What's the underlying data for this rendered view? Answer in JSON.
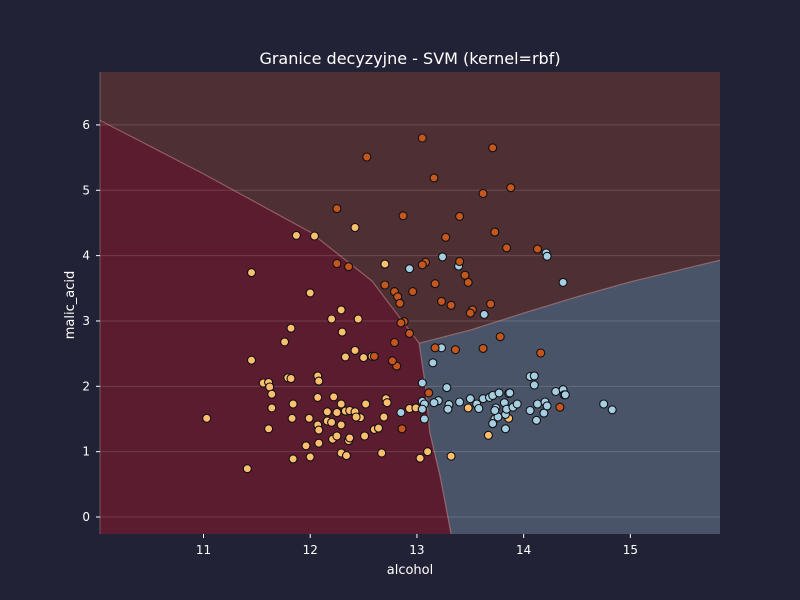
{
  "chart_data": {
    "type": "scatter",
    "title": "Granice decyzyjne - SVM (kernel=rbf)",
    "xlabel": "alcohol",
    "ylabel": "malic_acid",
    "xlim": [
      10.03,
      15.84
    ],
    "ylim": [
      -0.26,
      6.81
    ],
    "xticks": [
      11,
      12,
      13,
      14,
      15
    ],
    "yticks": [
      0,
      1,
      2,
      3,
      4,
      5,
      6
    ],
    "grid": "horizontal",
    "background_color": "#222236",
    "region_colors": {
      "class_0": "#5a1c2e",
      "class_1": "#4a5468",
      "class_2": "#4e2f34"
    },
    "decision_boundaries": {
      "class_0_class_2": [
        [
          10.03,
          6.07
        ],
        [
          11.0,
          5.25
        ],
        [
          12.0,
          4.36
        ],
        [
          12.58,
          3.61
        ],
        [
          13.02,
          2.66
        ]
      ],
      "class_1_class_2": [
        [
          13.02,
          2.66
        ],
        [
          13.5,
          2.86
        ],
        [
          14.0,
          3.12
        ],
        [
          14.5,
          3.37
        ],
        [
          15.0,
          3.6
        ],
        [
          15.84,
          3.93
        ]
      ],
      "class_0_class_1": [
        [
          13.02,
          2.66
        ],
        [
          13.08,
          2.0
        ],
        [
          13.12,
          1.3
        ],
        [
          13.22,
          0.6
        ],
        [
          13.32,
          -0.26
        ]
      ]
    },
    "series": [
      {
        "name": "",
        "color": "#fdbf6f",
        "points": [
          [
            11.45,
            3.74
          ],
          [
            11.87,
            4.31
          ],
          [
            12.04,
            4.3
          ],
          [
            12.42,
            4.43
          ],
          [
            12.7,
            3.87
          ],
          [
            12.0,
            3.43
          ],
          [
            12.29,
            3.17
          ],
          [
            12.2,
            3.03
          ],
          [
            12.45,
            3.03
          ],
          [
            12.3,
            2.83
          ],
          [
            12.42,
            2.55
          ],
          [
            12.5,
            2.44
          ],
          [
            12.58,
            2.46
          ],
          [
            12.33,
            2.45
          ],
          [
            11.45,
            2.4
          ],
          [
            11.76,
            2.68
          ],
          [
            11.82,
            2.89
          ],
          [
            11.79,
            2.13
          ],
          [
            11.82,
            2.12
          ],
          [
            11.56,
            2.05
          ],
          [
            11.61,
            2.06
          ],
          [
            11.62,
            1.99
          ],
          [
            11.64,
            1.88
          ],
          [
            12.07,
            2.16
          ],
          [
            12.08,
            2.08
          ],
          [
            11.03,
            1.51
          ],
          [
            11.84,
            1.73
          ],
          [
            12.07,
            1.83
          ],
          [
            12.22,
            1.84
          ],
          [
            12.29,
            1.73
          ],
          [
            12.16,
            1.61
          ],
          [
            12.25,
            1.6
          ],
          [
            12.33,
            1.62
          ],
          [
            12.43,
            1.53
          ],
          [
            12.47,
            1.52
          ],
          [
            12.52,
            1.73
          ],
          [
            12.71,
            1.81
          ],
          [
            12.72,
            1.75
          ],
          [
            12.37,
            1.63
          ],
          [
            12.42,
            1.61
          ],
          [
            11.83,
            1.51
          ],
          [
            11.96,
            1.09
          ],
          [
            11.99,
            1.51
          ],
          [
            12.07,
            1.41
          ],
          [
            12.08,
            1.33
          ],
          [
            12.16,
            1.47
          ],
          [
            12.2,
            1.45
          ],
          [
            12.29,
            1.41
          ],
          [
            11.61,
            1.35
          ],
          [
            11.64,
            1.67
          ],
          [
            12.0,
            0.92
          ],
          [
            11.41,
            0.74
          ],
          [
            11.84,
            0.89
          ],
          [
            12.08,
            1.13
          ],
          [
            12.21,
            1.19
          ],
          [
            12.25,
            1.24
          ],
          [
            12.29,
            0.98
          ],
          [
            12.34,
            0.94
          ],
          [
            12.36,
            1.17
          ],
          [
            12.37,
            1.21
          ],
          [
            12.43,
            1.53
          ],
          [
            12.51,
            1.24
          ],
          [
            12.6,
            1.34
          ],
          [
            12.64,
            1.36
          ],
          [
            12.67,
            0.98
          ],
          [
            12.69,
            1.53
          ],
          [
            12.86,
            1.35
          ],
          [
            12.93,
            1.66
          ],
          [
            12.99,
            1.67
          ],
          [
            13.03,
            0.9
          ],
          [
            13.05,
            1.65
          ],
          [
            13.1,
            1.0
          ],
          [
            13.32,
            0.93
          ],
          [
            13.48,
            1.67
          ],
          [
            13.67,
            1.25
          ],
          [
            13.86,
            1.51
          ]
        ]
      },
      {
        "name": "",
        "color": "#a6cee3",
        "points": [
          [
            13.24,
            3.98
          ],
          [
            12.93,
            3.8
          ],
          [
            13.39,
            3.84
          ],
          [
            14.21,
            4.04
          ],
          [
            14.22,
            3.99
          ],
          [
            14.37,
            3.59
          ],
          [
            13.63,
            3.1
          ],
          [
            13.23,
            2.59
          ],
          [
            13.15,
            2.36
          ],
          [
            13.05,
            2.05
          ],
          [
            13.28,
            1.98
          ],
          [
            13.2,
            1.78
          ],
          [
            13.05,
            1.77
          ],
          [
            13.07,
            1.73
          ],
          [
            13.05,
            1.65
          ],
          [
            13.16,
            1.75
          ],
          [
            13.3,
            1.72
          ],
          [
            13.29,
            1.65
          ],
          [
            13.4,
            1.76
          ],
          [
            13.5,
            1.81
          ],
          [
            13.56,
            1.73
          ],
          [
            13.58,
            1.66
          ],
          [
            13.62,
            1.81
          ],
          [
            13.68,
            1.83
          ],
          [
            13.71,
            1.86
          ],
          [
            13.73,
            1.5
          ],
          [
            13.76,
            1.53
          ],
          [
            13.74,
            1.67
          ],
          [
            13.77,
            1.9
          ],
          [
            13.82,
            1.75
          ],
          [
            13.83,
            1.57
          ],
          [
            13.84,
            1.65
          ],
          [
            13.86,
            1.89
          ],
          [
            13.87,
            1.9
          ],
          [
            13.9,
            1.68
          ],
          [
            13.94,
            1.73
          ],
          [
            14.06,
            1.63
          ],
          [
            14.06,
            2.15
          ],
          [
            14.1,
            2.16
          ],
          [
            14.1,
            2.02
          ],
          [
            14.12,
            1.48
          ],
          [
            14.13,
            1.73
          ],
          [
            14.19,
            1.59
          ],
          [
            14.2,
            1.76
          ],
          [
            14.22,
            1.7
          ],
          [
            14.3,
            1.92
          ],
          [
            14.37,
            1.95
          ],
          [
            14.38,
            1.87
          ],
          [
            14.39,
            1.87
          ],
          [
            14.75,
            1.73
          ],
          [
            14.83,
            1.64
          ],
          [
            13.71,
            1.43
          ],
          [
            13.83,
            1.35
          ],
          [
            13.73,
            1.63
          ],
          [
            12.85,
            1.6
          ],
          [
            13.07,
            1.5
          ]
        ]
      },
      {
        "name": "",
        "color": "#c4561e",
        "points": [
          [
            13.05,
            5.8
          ],
          [
            13.71,
            5.65
          ],
          [
            12.53,
            5.51
          ],
          [
            13.16,
            5.19
          ],
          [
            13.88,
            5.04
          ],
          [
            13.62,
            4.95
          ],
          [
            12.25,
            4.72
          ],
          [
            12.87,
            4.61
          ],
          [
            13.4,
            4.6
          ],
          [
            13.73,
            4.36
          ],
          [
            13.27,
            4.28
          ],
          [
            13.84,
            4.12
          ],
          [
            14.13,
            4.1
          ],
          [
            12.25,
            3.88
          ],
          [
            12.36,
            3.83
          ],
          [
            13.08,
            3.9
          ],
          [
            13.05,
            3.86
          ],
          [
            13.4,
            3.91
          ],
          [
            13.48,
            3.59
          ],
          [
            12.7,
            3.55
          ],
          [
            13.17,
            3.57
          ],
          [
            13.45,
            3.7
          ],
          [
            12.79,
            3.45
          ],
          [
            12.96,
            3.45
          ],
          [
            12.82,
            3.37
          ],
          [
            12.84,
            3.27
          ],
          [
            13.23,
            3.3
          ],
          [
            13.32,
            3.24
          ],
          [
            13.69,
            3.26
          ],
          [
            13.52,
            3.17
          ],
          [
            13.5,
            3.12
          ],
          [
            12.88,
            2.99
          ],
          [
            12.81,
            2.31
          ],
          [
            12.93,
            2.81
          ],
          [
            12.77,
            2.39
          ],
          [
            12.79,
            2.67
          ],
          [
            13.17,
            2.59
          ],
          [
            13.36,
            2.56
          ],
          [
            13.62,
            2.58
          ],
          [
            13.78,
            2.76
          ],
          [
            14.16,
            2.51
          ],
          [
            12.86,
            1.35
          ],
          [
            14.34,
            1.68
          ],
          [
            13.11,
            1.9
          ],
          [
            12.6,
            2.46
          ],
          [
            12.85,
            2.97
          ]
        ]
      }
    ]
  }
}
